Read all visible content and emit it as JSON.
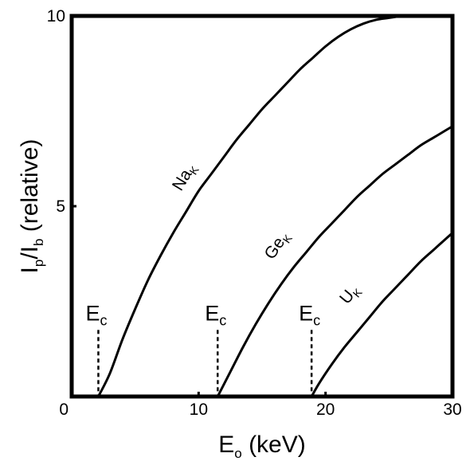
{
  "chart_data": {
    "type": "line",
    "xlabel": {
      "main": "E",
      "sub": "o",
      "unit": " (keV)"
    },
    "ylabel": {
      "p1": "I",
      "sub1": "p",
      "p2": "/I",
      "sub2": "b",
      "rest": " (relative)"
    },
    "xlim": [
      0,
      30
    ],
    "ylim": [
      0,
      10
    ],
    "x_ticks": [
      {
        "value": 0,
        "label": "0"
      },
      {
        "value": 10,
        "label": "10"
      },
      {
        "value": 20,
        "label": "20"
      },
      {
        "value": 30,
        "label": "30"
      }
    ],
    "y_ticks": [
      {
        "value": 5,
        "label": "5"
      },
      {
        "value": 10,
        "label": "10"
      }
    ],
    "grid": false,
    "series": [
      {
        "name": "Na_K",
        "label_main": "Na",
        "label_sub": "K",
        "label_anchor": {
          "x": 9.2,
          "y": 5.7
        },
        "x": [
          2.1,
          3,
          4,
          5,
          6,
          7,
          8,
          9,
          10,
          11,
          12,
          13,
          14,
          15,
          16,
          17,
          18,
          19,
          20,
          21,
          22,
          23,
          24,
          25,
          26
        ],
        "y": [
          0.0,
          0.6,
          1.5,
          2.3,
          3.05,
          3.7,
          4.3,
          4.85,
          5.4,
          5.85,
          6.3,
          6.75,
          7.15,
          7.55,
          7.9,
          8.25,
          8.6,
          8.9,
          9.2,
          9.45,
          9.65,
          9.8,
          9.9,
          9.95,
          10.0
        ]
      },
      {
        "name": "Ge_K",
        "label_main": "Ge",
        "label_sub": "K",
        "label_anchor": {
          "x": 16.5,
          "y": 3.9
        },
        "x": [
          11.5,
          12.5,
          13.5,
          14.5,
          15.5,
          16.5,
          17.5,
          18.5,
          19.5,
          20.5,
          21.5,
          22.5,
          23.5,
          24.5,
          25.5,
          26.5,
          27.5,
          28.5,
          29.5,
          30.0
        ],
        "y": [
          0.0,
          0.65,
          1.3,
          1.9,
          2.45,
          2.95,
          3.4,
          3.8,
          4.2,
          4.55,
          4.9,
          5.25,
          5.55,
          5.85,
          6.1,
          6.35,
          6.6,
          6.8,
          7.0,
          7.1
        ]
      },
      {
        "name": "U_K",
        "label_main": "U",
        "label_sub": "K",
        "label_anchor": {
          "x": 22.2,
          "y": 2.6
        },
        "x": [
          18.9,
          19.5,
          20.5,
          21.5,
          22.5,
          23.5,
          24.5,
          25.5,
          26.5,
          27.5,
          28.5,
          29.5,
          30.0
        ],
        "y": [
          0.0,
          0.35,
          0.85,
          1.3,
          1.7,
          2.1,
          2.5,
          2.85,
          3.2,
          3.55,
          3.85,
          4.15,
          4.3
        ]
      }
    ],
    "annotations": [
      {
        "text": "E",
        "sub": "c",
        "x": 2.1,
        "y_top": 1.75,
        "style": "dashed-vertical"
      },
      {
        "text": "E",
        "sub": "c",
        "x": 11.5,
        "y_top": 1.75,
        "style": "dashed-vertical"
      },
      {
        "text": "E",
        "sub": "c",
        "x": 18.9,
        "y_top": 1.75,
        "style": "dashed-vertical"
      }
    ]
  }
}
